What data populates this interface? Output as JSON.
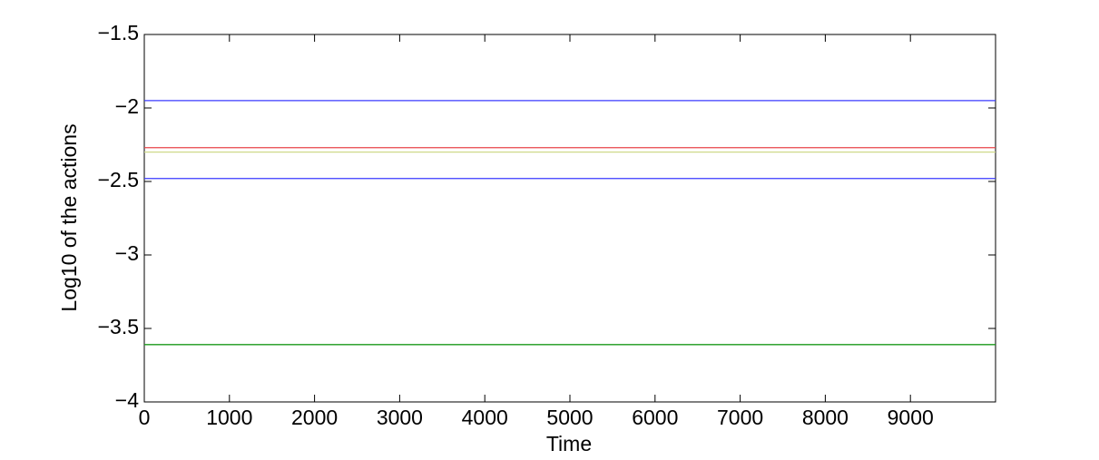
{
  "chart_data": {
    "type": "line",
    "xlabel": "Time",
    "ylabel": "Log10 of the actions",
    "x": [
      0,
      1000,
      2000,
      3000,
      4000,
      5000,
      6000,
      7000,
      8000,
      9000,
      10000
    ],
    "series": [
      {
        "color": "#3a3aff",
        "values": [
          -1.95,
          -1.95,
          -1.95,
          -1.95,
          -1.95,
          -1.95,
          -1.95,
          -1.95,
          -1.95,
          -1.95,
          -1.95
        ]
      },
      {
        "color": "#e8454a",
        "values": [
          -2.27,
          -2.27,
          -2.27,
          -2.27,
          -2.27,
          -2.27,
          -2.27,
          -2.27,
          -2.27,
          -2.27,
          -2.27
        ]
      },
      {
        "color": "#cfd98a",
        "values": [
          -2.3,
          -2.3,
          -2.3,
          -2.3,
          -2.3,
          -2.3,
          -2.3,
          -2.3,
          -2.3,
          -2.3,
          -2.3
        ]
      },
      {
        "color": "#3a3aff",
        "values": [
          -2.48,
          -2.48,
          -2.48,
          -2.48,
          -2.48,
          -2.48,
          -2.48,
          -2.48,
          -2.48,
          -2.48,
          -2.48
        ]
      },
      {
        "color": "#1a9a1a",
        "values": [
          -3.61,
          -3.61,
          -3.61,
          -3.61,
          -3.61,
          -3.61,
          -3.61,
          -3.61,
          -3.61,
          -3.61,
          -3.61
        ]
      }
    ],
    "xlim": [
      0,
      10000
    ],
    "xticks": [
      0,
      1000,
      2000,
      3000,
      4000,
      5000,
      6000,
      7000,
      8000,
      9000
    ],
    "ylim": [
      -4,
      -1.5
    ],
    "yticks": [
      {
        "value": -4,
        "label": "−4"
      },
      {
        "value": -3.5,
        "label": "−3.5"
      },
      {
        "value": -3,
        "label": "−3"
      },
      {
        "value": -2.5,
        "label": "−2.5"
      },
      {
        "value": -2,
        "label": "−2"
      },
      {
        "value": -1.5,
        "label": "−1.5"
      }
    ],
    "grid": false
  }
}
